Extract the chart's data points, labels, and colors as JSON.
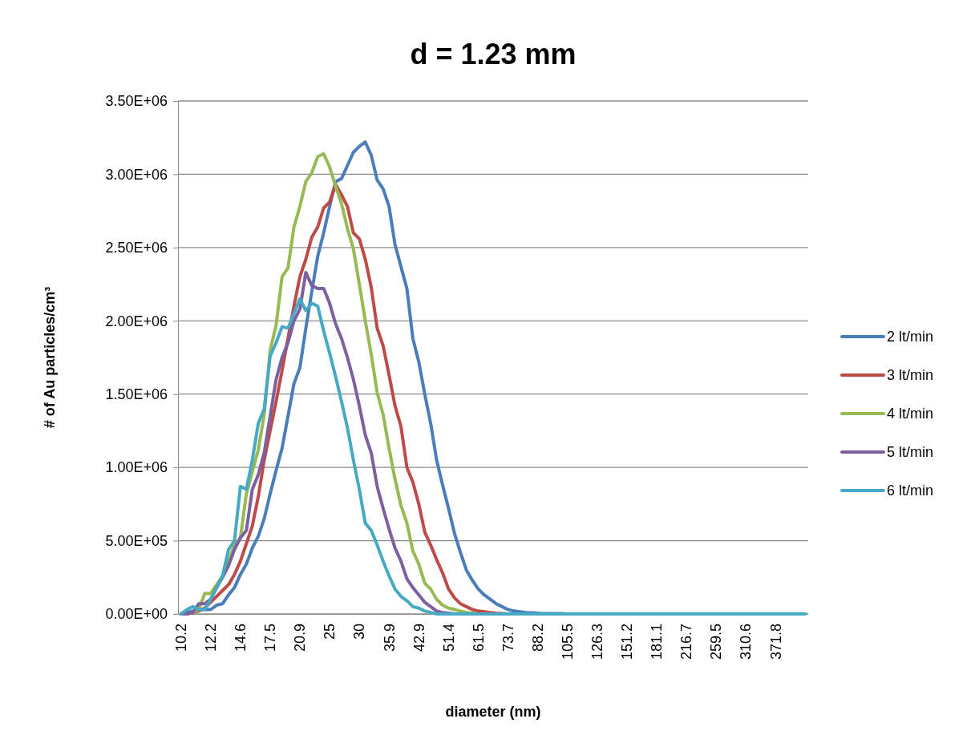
{
  "chart_data": {
    "type": "line",
    "title": "d = 1.23 mm",
    "xlabel": "diameter (nm)",
    "ylabel": "# of Au particles/cm³",
    "categories": [
      "10.2",
      null,
      null,
      null,
      null,
      "12.2",
      null,
      null,
      null,
      null,
      "14.6",
      null,
      null,
      null,
      null,
      "17.5",
      null,
      null,
      null,
      null,
      "20.9",
      null,
      null,
      null,
      null,
      "25",
      null,
      null,
      null,
      null,
      "30",
      null,
      null,
      null,
      null,
      "35.9",
      null,
      null,
      null,
      null,
      "42.9",
      null,
      null,
      null,
      null,
      "51.4",
      null,
      null,
      null,
      null,
      "61.5",
      null,
      null,
      null,
      null,
      "73.7",
      null,
      null,
      null,
      null,
      "88.2",
      null,
      null,
      null,
      null,
      "105.5",
      null,
      null,
      null,
      null,
      "126.3",
      null,
      null,
      null,
      null,
      "151.2",
      null,
      null,
      null,
      null,
      "181.1",
      null,
      null,
      null,
      null,
      "216.7",
      null,
      null,
      null,
      null,
      "259.5",
      null,
      null,
      null,
      null,
      "310.6",
      null,
      null,
      null,
      null,
      "371.8",
      null,
      null,
      null,
      null,
      null
    ],
    "series": [
      {
        "name": "2 lt/min",
        "color": "#4a7ebb",
        "values": [
          0,
          10000.0,
          20000.0,
          30000.0,
          30000.0,
          30000.0,
          60000.0,
          70000.0,
          130000.0,
          180000.0,
          270000.0,
          340000.0,
          450000.0,
          530000.0,
          650000.0,
          820000.0,
          980000.0,
          1130000.0,
          1350000.0,
          1570000.0,
          1680000.0,
          1950000.0,
          2200000.0,
          2440000.0,
          2600000.0,
          2780000.0,
          2950000.0,
          2970000.0,
          3060000.0,
          3150000.0,
          3190000.0,
          3220000.0,
          3130000.0,
          2960000.0,
          2900000.0,
          2780000.0,
          2520000.0,
          2370000.0,
          2220000.0,
          1880000.0,
          1720000.0,
          1500000.0,
          1300000.0,
          1050000.0,
          880000.0,
          720000.0,
          550000.0,
          420000.0,
          300000.0,
          230000.0,
          170000.0,
          130000.0,
          100000.0,
          70000.0,
          50000.0,
          30000.0,
          20000.0,
          15000.0,
          10000.0,
          8000.0,
          5000.0,
          3000.0,
          3000.0,
          3000.0,
          3000.0,
          0,
          0,
          null,
          null,
          null,
          null,
          null,
          null,
          null,
          null,
          null,
          null,
          null,
          null,
          null,
          null,
          null,
          null,
          null,
          null,
          null,
          null,
          null,
          null,
          null,
          null,
          null,
          null,
          null,
          null,
          null,
          null,
          null,
          null,
          null,
          null,
          null,
          null,
          null,
          null,
          null
        ]
      },
      {
        "name": "3 lt/min",
        "color": "#be4b48",
        "values": [
          0,
          0,
          10000.0,
          20000.0,
          40000.0,
          80000.0,
          120000.0,
          160000.0,
          200000.0,
          270000.0,
          360000.0,
          480000.0,
          600000.0,
          800000.0,
          1050000.0,
          1250000.0,
          1450000.0,
          1660000.0,
          1880000.0,
          2100000.0,
          2300000.0,
          2420000.0,
          2570000.0,
          2640000.0,
          2770000.0,
          2810000.0,
          2930000.0,
          2860000.0,
          2780000.0,
          2600000.0,
          2560000.0,
          2420000.0,
          2230000.0,
          1950000.0,
          1830000.0,
          1630000.0,
          1420000.0,
          1280000.0,
          1000000.0,
          900000.0,
          750000.0,
          560000.0,
          470000.0,
          370000.0,
          280000.0,
          170000.0,
          110000.0,
          70000.0,
          50000.0,
          30000.0,
          20000.0,
          15000.0,
          10000.0,
          6000.0,
          3000.0,
          0,
          0,
          null,
          null,
          null,
          null,
          null,
          null,
          null,
          null,
          null,
          null,
          null,
          null,
          null,
          null,
          null,
          null,
          null,
          null,
          null,
          null,
          null,
          null,
          null,
          null,
          null,
          null,
          null,
          null,
          null,
          null,
          null,
          null,
          null,
          null,
          null,
          null,
          null,
          null,
          null,
          null,
          null,
          null,
          null,
          null,
          null,
          null,
          null,
          null,
          null
        ]
      },
      {
        "name": "4 lt/min",
        "color": "#98b954",
        "values": [
          null,
          null,
          10000.0,
          30000.0,
          140000.0,
          140000.0,
          200000.0,
          260000.0,
          360000.0,
          470000.0,
          520000.0,
          820000.0,
          970000.0,
          1120000.0,
          1360000.0,
          1800000.0,
          1970000.0,
          2300000.0,
          2360000.0,
          2640000.0,
          2780000.0,
          2950000.0,
          3010000.0,
          3120000.0,
          3140000.0,
          3050000.0,
          2920000.0,
          2800000.0,
          2630000.0,
          2490000.0,
          2250000.0,
          2000000.0,
          1770000.0,
          1510000.0,
          1360000.0,
          1130000.0,
          920000.0,
          740000.0,
          620000.0,
          430000.0,
          340000.0,
          210000.0,
          170000.0,
          100000.0,
          60000.0,
          40000.0,
          30000.0,
          20000.0,
          10000.0,
          5000.0,
          0,
          null,
          null,
          null,
          null,
          null,
          null,
          null,
          null,
          null,
          null,
          null,
          null,
          null,
          null,
          null,
          null,
          null,
          null,
          null,
          null,
          null,
          null,
          null,
          null,
          null,
          null,
          null,
          null,
          null,
          null,
          null,
          null,
          null,
          null,
          null,
          null,
          null,
          null,
          null,
          null,
          null,
          null,
          null,
          null,
          null,
          null,
          null,
          null,
          null,
          null,
          null,
          null,
          null,
          null,
          null
        ]
      },
      {
        "name": "5 lt/min",
        "color": "#7d60a0",
        "values": [
          0,
          0,
          10000.0,
          70000.0,
          70000.0,
          100000.0,
          180000.0,
          250000.0,
          330000.0,
          440000.0,
          520000.0,
          570000.0,
          850000.0,
          950000.0,
          1100000.0,
          1350000.0,
          1600000.0,
          1750000.0,
          1850000.0,
          2000000.0,
          2080000.0,
          2330000.0,
          2240000.0,
          2220000.0,
          2220000.0,
          2120000.0,
          1980000.0,
          1880000.0,
          1750000.0,
          1600000.0,
          1420000.0,
          1220000.0,
          1100000.0,
          870000.0,
          720000.0,
          580000.0,
          450000.0,
          360000.0,
          240000.0,
          180000.0,
          130000.0,
          80000.0,
          50000.0,
          20000.0,
          10000.0,
          5000.0,
          0,
          0,
          null,
          null,
          null,
          null,
          null,
          null,
          null,
          null,
          null,
          null,
          null,
          null,
          null,
          null,
          null,
          null,
          null,
          null,
          null,
          null,
          null,
          null,
          null,
          null,
          null,
          null,
          null,
          null,
          null,
          null,
          null,
          null,
          null,
          null,
          null,
          null,
          null,
          null,
          null,
          null,
          null,
          null,
          null,
          null,
          null,
          null,
          null,
          null,
          null,
          null,
          null,
          null,
          null,
          null,
          null,
          null,
          null,
          null
        ]
      },
      {
        "name": "6 lt/min",
        "color": "#46aac5",
        "values": [
          0,
          30000.0,
          50000.0,
          30000.0,
          30000.0,
          100000.0,
          180000.0,
          260000.0,
          440000.0,
          500000.0,
          870000.0,
          850000.0,
          1050000.0,
          1300000.0,
          1400000.0,
          1760000.0,
          1850000.0,
          1960000.0,
          1950000.0,
          2050000.0,
          2150000.0,
          2070000.0,
          2120000.0,
          2100000.0,
          1930000.0,
          1780000.0,
          1620000.0,
          1450000.0,
          1270000.0,
          1050000.0,
          850000.0,
          620000.0,
          570000.0,
          470000.0,
          360000.0,
          260000.0,
          170000.0,
          120000.0,
          90000.0,
          50000.0,
          40000.0,
          20000.0,
          10000.0,
          0,
          0,
          0,
          0,
          0,
          0,
          0,
          0,
          0,
          0,
          0,
          0,
          0,
          0,
          0,
          0,
          0,
          0,
          0,
          0,
          0,
          0,
          0,
          0,
          0,
          0,
          0,
          0,
          0,
          0,
          0,
          0,
          0,
          0,
          0,
          0,
          0,
          0,
          0,
          0,
          0,
          0,
          0,
          0,
          0,
          0,
          0,
          0,
          0,
          0,
          0,
          0,
          0,
          0,
          0,
          0,
          0,
          0,
          0,
          0,
          0,
          0,
          0
        ]
      }
    ],
    "ylim": [
      0,
      3500000
    ],
    "yticks": [
      {
        "value": 0,
        "label": "0.00E+00"
      },
      {
        "value": 500000,
        "label": "5.00E+05"
      },
      {
        "value": 1000000,
        "label": "1.00E+06"
      },
      {
        "value": 1500000,
        "label": "1.50E+06"
      },
      {
        "value": 2000000,
        "label": "2.00E+06"
      },
      {
        "value": 2500000,
        "label": "2.50E+06"
      },
      {
        "value": 3000000,
        "label": "3.00E+06"
      },
      {
        "value": 3500000,
        "label": "3.50E+06"
      }
    ],
    "grid": "y",
    "legend": "right"
  }
}
